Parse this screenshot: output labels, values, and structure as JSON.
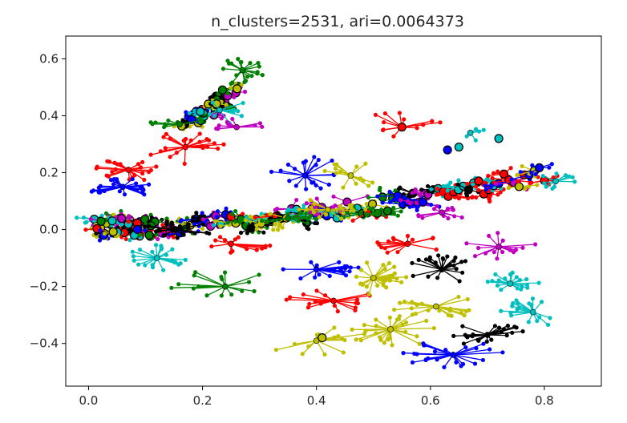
{
  "chart_data": {
    "type": "scatter",
    "title": "n_clusters=2531, ari=0.0064373",
    "xlabel": "",
    "ylabel": "",
    "xlim": [
      -0.04,
      0.9
    ],
    "ylim": [
      -0.55,
      0.68
    ],
    "x_ticks": [
      0.0,
      0.2,
      0.4,
      0.6,
      0.8
    ],
    "x_tick_labels": [
      "0.0",
      "0.2",
      "0.4",
      "0.6",
      "0.8"
    ],
    "y_ticks": [
      0.6,
      0.4,
      0.2,
      0.0,
      -0.2,
      -0.4
    ],
    "y_tick_labels": [
      "0.6",
      "0.4",
      "0.2",
      "0.0",
      "−0.2",
      "−0.4"
    ],
    "grid": false,
    "legend": "none",
    "cluster_colors": [
      "#0000ff",
      "#008000",
      "#ff0000",
      "#00bfbf",
      "#bf00bf",
      "#bfbf00",
      "#000000"
    ],
    "clusters": [
      {
        "center": [
          0.27,
          0.56
        ],
        "color": "#008000",
        "spread": [
          0.05,
          0.05
        ],
        "n": 18
      },
      {
        "center": [
          0.23,
          0.42
        ],
        "color": "#00bfbf",
        "spread": [
          0.05,
          0.05
        ],
        "n": 10
      },
      {
        "center": [
          0.16,
          0.37
        ],
        "color": "#008000",
        "spread": [
          0.06,
          0.02
        ],
        "n": 10
      },
      {
        "center": [
          0.26,
          0.36
        ],
        "color": "#bf00bf",
        "spread": [
          0.05,
          0.03
        ],
        "n": 10
      },
      {
        "center": [
          0.55,
          0.36
        ],
        "color": "#ff0000",
        "spread": [
          0.07,
          0.06
        ],
        "n": 12
      },
      {
        "center": [
          0.67,
          0.34
        ],
        "color": "#00bfbf",
        "spread": [
          0.04,
          0.03
        ],
        "n": 5
      },
      {
        "center": [
          0.17,
          0.29
        ],
        "color": "#ff0000",
        "spread": [
          0.07,
          0.06
        ],
        "n": 22
      },
      {
        "center": [
          0.07,
          0.21
        ],
        "color": "#ff0000",
        "spread": [
          0.06,
          0.04
        ],
        "n": 22
      },
      {
        "center": [
          0.06,
          0.15
        ],
        "color": "#0000ff",
        "spread": [
          0.06,
          0.04
        ],
        "n": 28
      },
      {
        "center": [
          0.38,
          0.19
        ],
        "color": "#0000ff",
        "spread": [
          0.08,
          0.07
        ],
        "n": 20
      },
      {
        "center": [
          0.46,
          0.19
        ],
        "color": "#bfbf00",
        "spread": [
          0.05,
          0.05
        ],
        "n": 14
      },
      {
        "center": [
          0.15,
          0.0
        ],
        "color": "#000000",
        "spread": [
          0.07,
          0.03
        ],
        "n": 20
      },
      {
        "center": [
          0.12,
          -0.1
        ],
        "color": "#00bfbf",
        "spread": [
          0.06,
          0.05
        ],
        "n": 22
      },
      {
        "center": [
          0.25,
          -0.05
        ],
        "color": "#ff0000",
        "spread": [
          0.07,
          0.04
        ],
        "n": 14
      },
      {
        "center": [
          0.24,
          -0.2
        ],
        "color": "#008000",
        "spread": [
          0.1,
          0.06
        ],
        "n": 16
      },
      {
        "center": [
          0.4,
          -0.14
        ],
        "color": "#0000ff",
        "spread": [
          0.08,
          0.04
        ],
        "n": 20
      },
      {
        "center": [
          0.43,
          -0.25
        ],
        "color": "#ff0000",
        "spread": [
          0.09,
          0.04
        ],
        "n": 18
      },
      {
        "center": [
          0.4,
          -0.39
        ],
        "color": "#bfbf00",
        "spread": [
          0.1,
          0.05
        ],
        "n": 14
      },
      {
        "center": [
          0.5,
          -0.17
        ],
        "color": "#bfbf00",
        "spread": [
          0.06,
          0.06
        ],
        "n": 26
      },
      {
        "center": [
          0.53,
          -0.35
        ],
        "color": "#bfbf00",
        "spread": [
          0.08,
          0.07
        ],
        "n": 26
      },
      {
        "center": [
          0.62,
          -0.14
        ],
        "color": "#000000",
        "spread": [
          0.06,
          0.05
        ],
        "n": 22
      },
      {
        "center": [
          0.61,
          -0.27
        ],
        "color": "#bfbf00",
        "spread": [
          0.08,
          0.04
        ],
        "n": 20
      },
      {
        "center": [
          0.64,
          -0.44
        ],
        "color": "#0000ff",
        "spread": [
          0.09,
          0.05
        ],
        "n": 24
      },
      {
        "center": [
          0.7,
          -0.37
        ],
        "color": "#000000",
        "spread": [
          0.07,
          0.04
        ],
        "n": 22
      },
      {
        "center": [
          0.74,
          -0.19
        ],
        "color": "#00bfbf",
        "spread": [
          0.07,
          0.04
        ],
        "n": 18
      },
      {
        "center": [
          0.78,
          -0.29
        ],
        "color": "#00bfbf",
        "spread": [
          0.06,
          0.05
        ],
        "n": 18
      },
      {
        "center": [
          0.72,
          -0.06
        ],
        "color": "#bf00bf",
        "spread": [
          0.07,
          0.05
        ],
        "n": 16
      },
      {
        "center": [
          0.56,
          -0.05
        ],
        "color": "#ff0000",
        "spread": [
          0.06,
          0.04
        ],
        "n": 14
      },
      {
        "center": [
          0.62,
          0.06
        ],
        "color": "#bf00bf",
        "spread": [
          0.05,
          0.03
        ],
        "n": 12
      },
      {
        "center": [
          0.82,
          0.17
        ],
        "color": "#00bfbf",
        "spread": [
          0.04,
          0.03
        ],
        "n": 10
      },
      {
        "center": [
          0.35,
          0.04
        ],
        "color": "#008000",
        "spread": [
          0.06,
          0.03
        ],
        "n": 12
      },
      {
        "center": [
          0.42,
          0.07
        ],
        "color": "#bfbf00",
        "spread": [
          0.06,
          0.04
        ],
        "n": 12
      }
    ],
    "band": {
      "from": [
        0.01,
        0.01
      ],
      "to": [
        0.8,
        0.2
      ],
      "sag": -0.05
    },
    "upper_arm": {
      "from": [
        0.18,
        0.38
      ],
      "to": [
        0.27,
        0.5
      ]
    },
    "isolated_points": [
      {
        "x": 0.63,
        "y": 0.28,
        "color": "#0000ff"
      },
      {
        "x": 0.65,
        "y": 0.29,
        "color": "#00bfbf"
      },
      {
        "x": 0.72,
        "y": 0.32,
        "color": "#00bfbf"
      },
      {
        "x": 0.55,
        "y": 0.36,
        "color": "#ff0000"
      },
      {
        "x": 0.41,
        "y": -0.38,
        "color": "#bfbf00"
      }
    ]
  }
}
